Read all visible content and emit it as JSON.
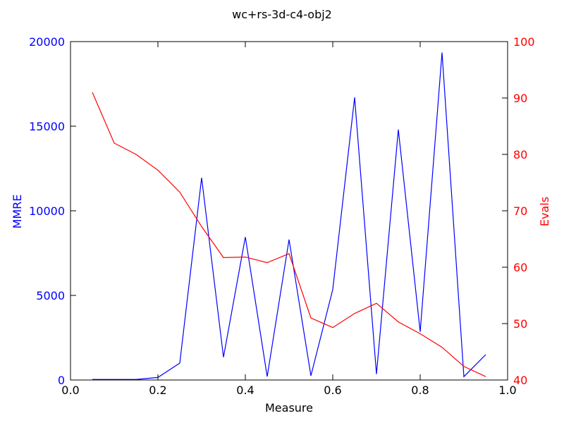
{
  "chart_data": {
    "type": "line",
    "title": "wc+rs-3d-c4-obj2",
    "xlabel": "Measure",
    "ylabel_left": "MMRE",
    "ylabel_right": "Evals",
    "xlim": [
      0.0,
      1.0
    ],
    "ylim_left": [
      0,
      20000
    ],
    "ylim_right": [
      40,
      100
    ],
    "xticks": [
      "0.0",
      "0.2",
      "0.4",
      "0.6",
      "0.8",
      "1.0"
    ],
    "yticks_left": [
      "0",
      "5000",
      "10000",
      "15000",
      "20000"
    ],
    "yticks_right": [
      "40",
      "50",
      "60",
      "70",
      "80",
      "90",
      "100"
    ],
    "grid": false,
    "x": [
      0.05,
      0.1,
      0.15,
      0.2,
      0.25,
      0.3,
      0.35,
      0.4,
      0.45,
      0.5,
      0.55,
      0.6,
      0.65,
      0.7,
      0.75,
      0.8,
      0.85,
      0.9,
      0.95
    ],
    "series": [
      {
        "axis": "left",
        "color": "#0000ff",
        "values": [
          30,
          30,
          30,
          150,
          1000,
          11950,
          1350,
          8450,
          200,
          8300,
          250,
          5350,
          16700,
          350,
          14800,
          2850,
          19350,
          200,
          1500
        ]
      },
      {
        "axis": "right",
        "color": "#ff0000",
        "values": [
          91,
          82,
          80,
          77.2,
          73.3,
          67.2,
          61.7,
          61.8,
          60.8,
          62.4,
          51,
          49.3,
          51.8,
          53.6,
          50.3,
          48.2,
          45.8,
          42.4,
          40.6
        ]
      }
    ]
  }
}
